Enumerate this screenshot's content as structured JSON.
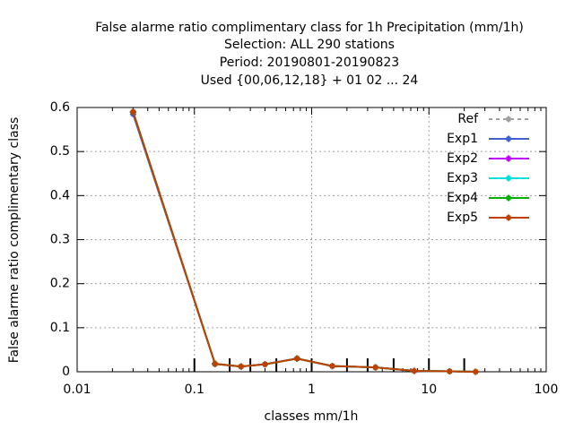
{
  "chart_data": {
    "type": "line",
    "title": [
      "False alarme ratio complimentary class  for 1h Precipitation (mm/1h)",
      "Selection: ALL    290 stations",
      "Period: 20190801-20190823",
      "Used {00,06,12,18} + 01 02 ... 24"
    ],
    "x_label": "classes mm/1h",
    "y_label": "False alarme ratio complimentary class",
    "x": [
      0.03,
      0.15,
      0.25,
      0.4,
      0.75,
      1.5,
      3.5,
      7.5,
      15,
      25
    ],
    "series": [
      {
        "name": "Ref",
        "color": "#a0a0a0",
        "dashed": true,
        "values": [
          null,
          null,
          null,
          null,
          null,
          null,
          null,
          null,
          null,
          null
        ]
      },
      {
        "name": "Exp1",
        "color": "#4060d0",
        "values": [
          0.585,
          0.018,
          0.012,
          0.017,
          0.03,
          0.013,
          0.01,
          0.002,
          0.001,
          0
        ]
      },
      {
        "name": "Exp2",
        "color": "#c000ff",
        "values": [
          0.59,
          0.018,
          0.012,
          0.017,
          0.03,
          0.013,
          0.01,
          0.002,
          0.001,
          0
        ]
      },
      {
        "name": "Exp3",
        "color": "#00e0e0",
        "values": [
          0.59,
          0.018,
          0.012,
          0.017,
          0.03,
          0.013,
          0.01,
          0.002,
          0.001,
          0
        ]
      },
      {
        "name": "Exp4",
        "color": "#00b000",
        "values": [
          0.59,
          0.018,
          0.012,
          0.017,
          0.03,
          0.013,
          0.01,
          0.002,
          0.001,
          0
        ]
      },
      {
        "name": "Exp5",
        "color": "#c04000",
        "values": [
          0.59,
          0.018,
          0.012,
          0.017,
          0.03,
          0.013,
          0.01,
          0.002,
          0.001,
          0
        ]
      }
    ],
    "class_limits": [
      0.1,
      0.2,
      0.3,
      0.5,
      1,
      2,
      3,
      5,
      10,
      20
    ],
    "xlog": true,
    "xlim": [
      0.01,
      100
    ],
    "xticks": [
      0.01,
      0.1,
      1,
      10,
      100
    ],
    "ylim": [
      0,
      0.6
    ],
    "yticks": [
      0,
      0.1,
      0.2,
      0.3,
      0.4,
      0.5,
      0.6
    ],
    "grid": true,
    "legend": "top-right"
  }
}
